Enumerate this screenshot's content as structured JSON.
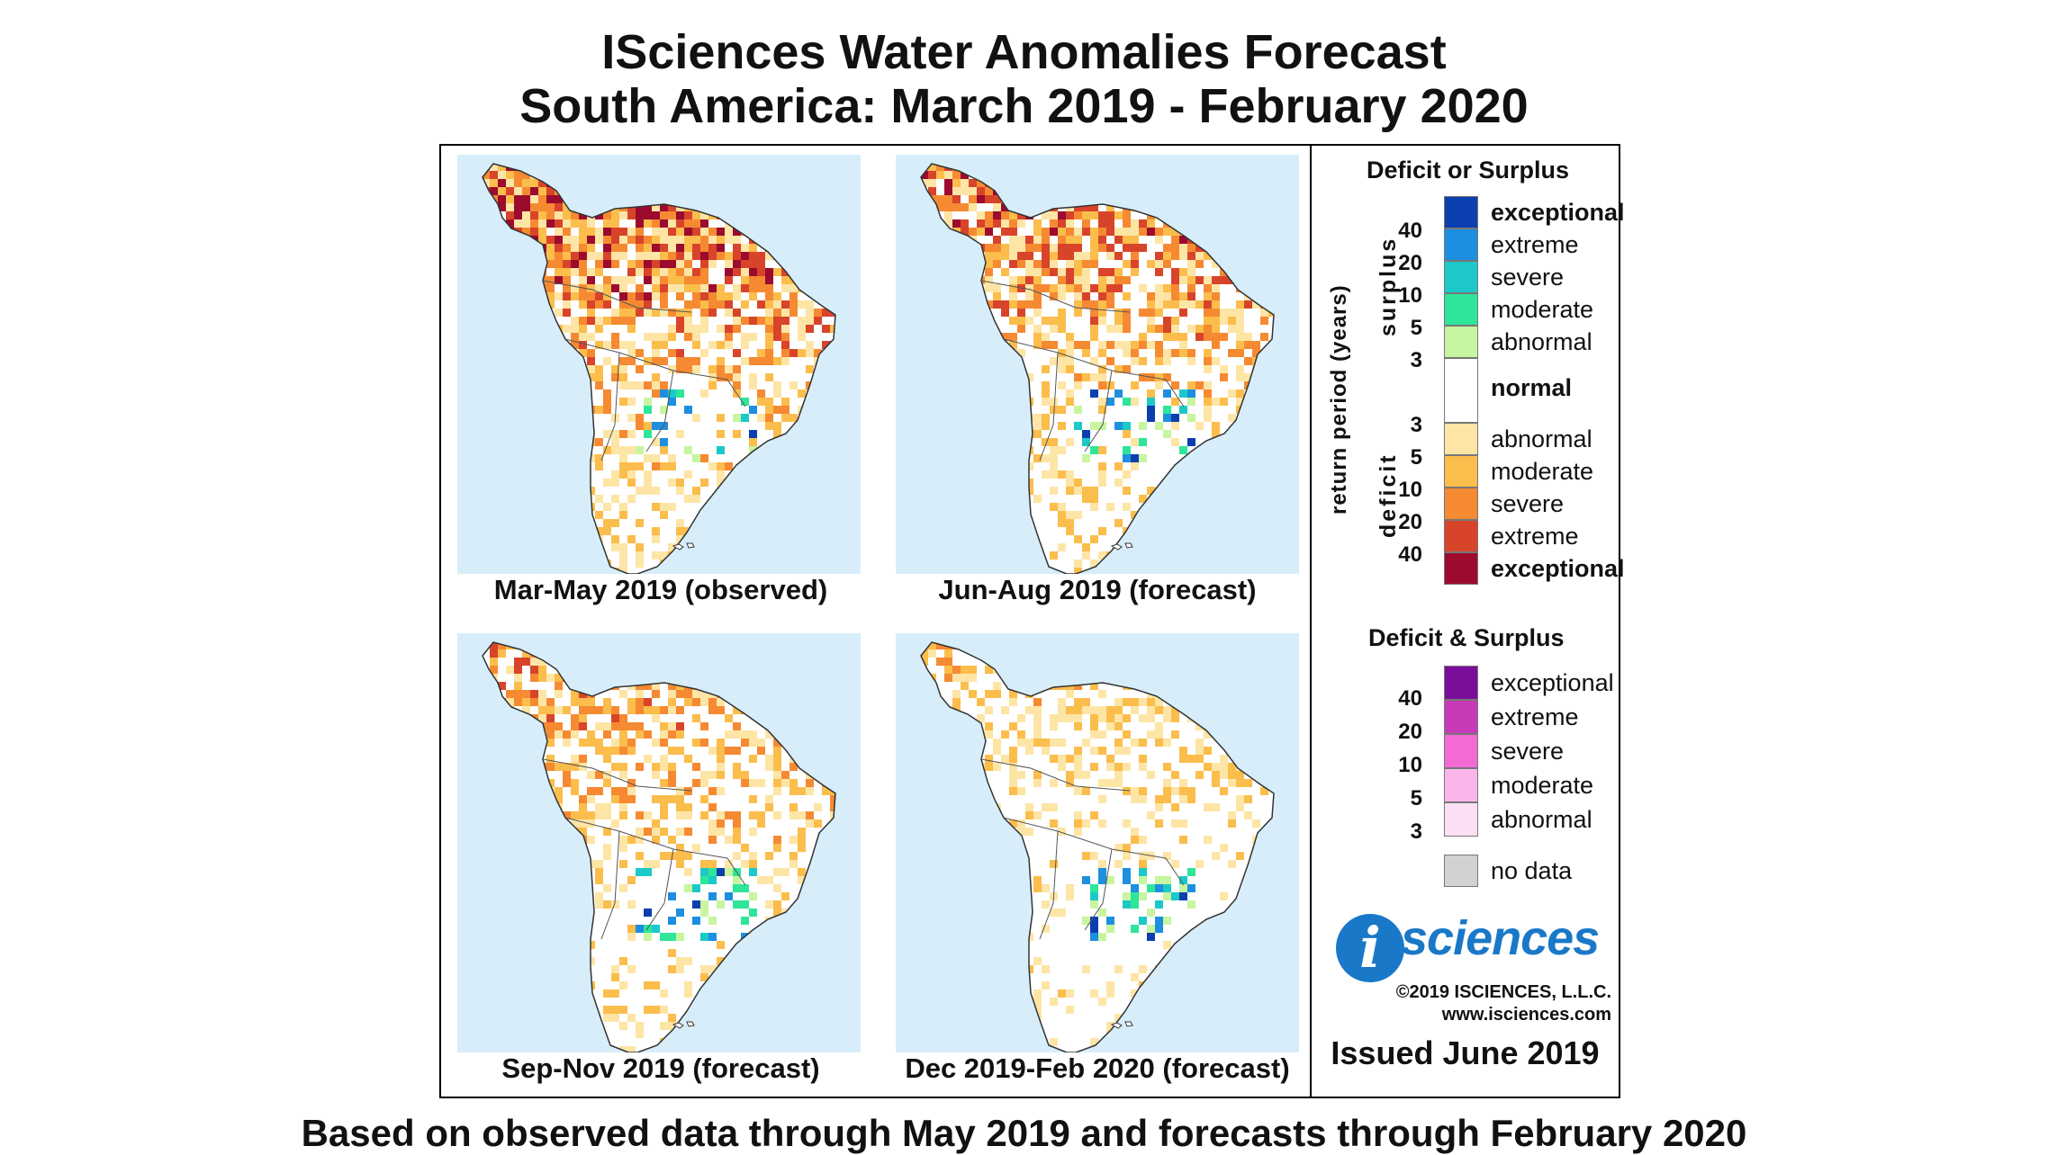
{
  "title": {
    "line1": "ISciences Water Anomalies Forecast",
    "line2": "South America: March 2019 - February 2020"
  },
  "panels": [
    {
      "label": "Mar-May 2019 (observed)",
      "intensity": 1.0
    },
    {
      "label": "Jun-Aug 2019 (forecast)",
      "intensity": 0.8
    },
    {
      "label": "Sep-Nov 2019 (forecast)",
      "intensity": 0.55
    },
    {
      "label": "Dec 2019-Feb 2020 (forecast)",
      "intensity": 0.25
    }
  ],
  "legend": {
    "deficit_surplus_title": "Deficit or Surplus",
    "axis_label": "return period (years)",
    "surplus_label": "surplus",
    "deficit_label": "deficit",
    "surplus": [
      {
        "label": "exceptional",
        "color": "#0b3fb0",
        "bold": true
      },
      {
        "label": "extreme",
        "color": "#1e8fe0",
        "bold": false
      },
      {
        "label": "severe",
        "color": "#1cc8c8",
        "bold": false
      },
      {
        "label": "moderate",
        "color": "#2ee59a",
        "bold": false
      },
      {
        "label": "abnormal",
        "color": "#c8f5a0",
        "bold": false
      }
    ],
    "surplus_ticks": [
      "40",
      "20",
      "10",
      "5",
      "3"
    ],
    "normal": {
      "label": "normal",
      "color": "#ffffff"
    },
    "deficit": [
      {
        "label": "abnormal",
        "color": "#fde5a6",
        "bold": false
      },
      {
        "label": "moderate",
        "color": "#fbbd4c",
        "bold": false
      },
      {
        "label": "severe",
        "color": "#f58a32",
        "bold": false
      },
      {
        "label": "extreme",
        "color": "#d8442a",
        "bold": false
      },
      {
        "label": "exceptional",
        "color": "#9c0a2e",
        "bold": true
      }
    ],
    "deficit_ticks": [
      "3",
      "5",
      "10",
      "20",
      "40"
    ],
    "both_title": "Deficit & Surplus",
    "both": [
      {
        "label": "exceptional",
        "color": "#7a0e9a"
      },
      {
        "label": "extreme",
        "color": "#c73ab8"
      },
      {
        "label": "severe",
        "color": "#f26ad2"
      },
      {
        "label": "moderate",
        "color": "#f8b6ea"
      },
      {
        "label": "abnormal",
        "color": "#fbe0f5"
      }
    ],
    "both_ticks": [
      "40",
      "20",
      "10",
      "5",
      "3"
    ],
    "no_data": {
      "label": "no data",
      "color": "#d2d2d2"
    }
  },
  "logo": {
    "i": "i",
    "text": "sciences"
  },
  "copyright": "©2019 ISCIENCES, L.L.C.",
  "website": "www.isciences.com",
  "issued": "Issued June 2019",
  "footer": "Based on observed data through May 2019 and forecasts through February 2020"
}
